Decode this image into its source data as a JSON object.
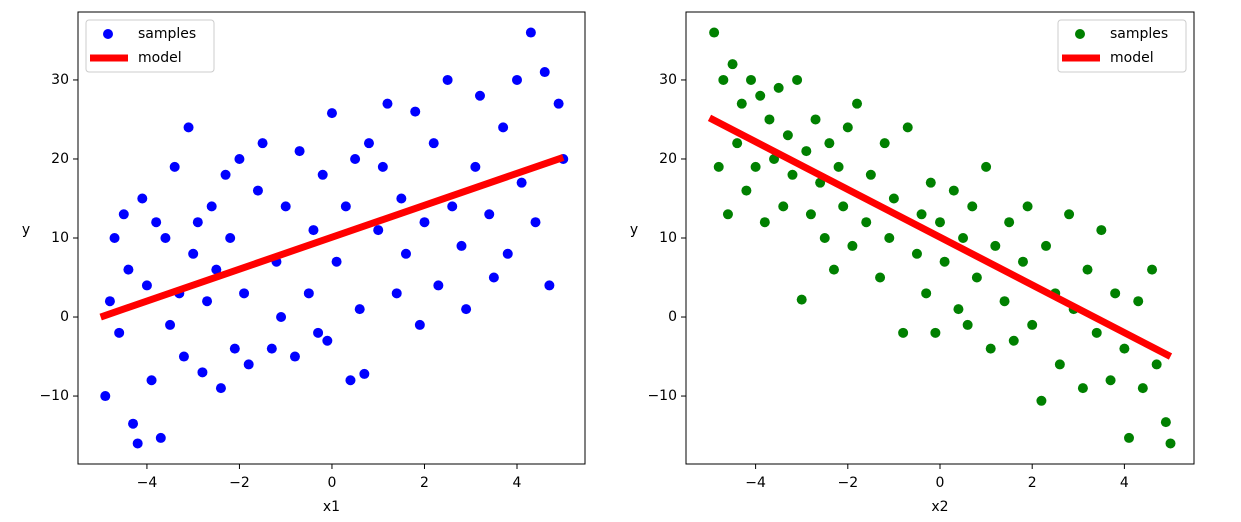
{
  "chart_data": [
    {
      "type": "scatter",
      "xlabel": "x1",
      "ylabel": "y",
      "legend": "upper left",
      "xlim": [
        -5.49,
        5.47
      ],
      "ylim": [
        -18.6,
        38.6
      ],
      "xticks": [
        {
          "value": -4,
          "label": "−4"
        },
        {
          "value": -2,
          "label": "−2"
        },
        0,
        2,
        4
      ],
      "yticks": [
        {
          "value": -10,
          "label": "−10"
        },
        0,
        10,
        20,
        30
      ],
      "series": [
        {
          "name": "samples",
          "mode": "markers",
          "color": "#0000ff",
          "x": [
            -4.9,
            -4.8,
            -4.7,
            -4.6,
            -4.5,
            -4.4,
            -4.3,
            -4.2,
            -4.1,
            -4.0,
            -3.9,
            -3.8,
            -3.7,
            -3.6,
            -3.5,
            -3.4,
            -3.3,
            -3.2,
            -3.1,
            -3.0,
            -2.9,
            -2.8,
            -2.7,
            -2.6,
            -2.5,
            -2.4,
            -2.3,
            -2.2,
            -2.1,
            -2.0,
            -1.9,
            -1.8,
            -1.6,
            -1.5,
            -1.3,
            -1.2,
            -1.1,
            -1.0,
            -0.8,
            -0.7,
            -0.5,
            -0.4,
            -0.3,
            -0.2,
            -0.1,
            0.0,
            0.1,
            0.3,
            0.4,
            0.5,
            0.6,
            0.7,
            0.8,
            1.0,
            1.1,
            1.2,
            1.4,
            1.5,
            1.6,
            1.8,
            1.9,
            2.0,
            2.2,
            2.3,
            2.5,
            2.6,
            2.8,
            2.9,
            3.1,
            3.2,
            3.4,
            3.5,
            3.7,
            3.8,
            4.0,
            4.1,
            4.3,
            4.4,
            4.6,
            4.7,
            4.9,
            5.0
          ],
          "values": [
            -10,
            2,
            10,
            -2,
            13,
            6,
            -13.5,
            -16,
            15,
            4,
            -8,
            12,
            -15.3,
            10,
            -1,
            19,
            3,
            -5,
            24,
            8,
            12,
            -7,
            2,
            14,
            6,
            -9,
            18,
            10,
            -4,
            20,
            3,
            -6,
            16,
            22,
            -4,
            7,
            0,
            14,
            -5,
            21,
            3,
            11,
            -2,
            18,
            -3,
            25.8,
            7,
            14,
            -8,
            20,
            1,
            -7.2,
            22,
            11,
            19,
            27,
            3,
            15,
            8,
            26,
            -1,
            12,
            22,
            4,
            30,
            14,
            9,
            1,
            19,
            28,
            13,
            5,
            24,
            8,
            30,
            17,
            36,
            12,
            31,
            4,
            27,
            20
          ]
        },
        {
          "name": "model",
          "mode": "line",
          "color": "#ff0000",
          "x": [
            -5,
            5
          ],
          "values": [
            0,
            20.2
          ]
        }
      ]
    },
    {
      "type": "scatter",
      "xlabel": "x2",
      "ylabel": "y",
      "legend": "upper right",
      "xlim": [
        -5.51,
        5.51
      ],
      "ylim": [
        -18.6,
        38.6
      ],
      "xticks": [
        {
          "value": -4,
          "label": "−4"
        },
        {
          "value": -2,
          "label": "−2"
        },
        0,
        2,
        4
      ],
      "yticks": [
        {
          "value": -10,
          "label": "−10"
        },
        0,
        10,
        20,
        30
      ],
      "series": [
        {
          "name": "samples",
          "mode": "markers",
          "color": "#008000",
          "x": [
            -4.9,
            -4.8,
            -4.7,
            -4.6,
            -4.5,
            -4.4,
            -4.3,
            -4.2,
            -4.1,
            -4.0,
            -3.9,
            -3.8,
            -3.7,
            -3.6,
            -3.5,
            -3.4,
            -3.3,
            -3.2,
            -3.1,
            -3.0,
            -2.9,
            -2.8,
            -2.7,
            -2.6,
            -2.5,
            -2.4,
            -2.3,
            -2.2,
            -2.1,
            -2.0,
            -1.9,
            -1.8,
            -1.6,
            -1.5,
            -1.3,
            -1.2,
            -1.1,
            -1.0,
            -0.8,
            -0.7,
            -0.5,
            -0.4,
            -0.3,
            -0.2,
            -0.1,
            0.0,
            0.1,
            0.3,
            0.4,
            0.5,
            0.6,
            0.7,
            0.8,
            1.0,
            1.1,
            1.2,
            1.4,
            1.5,
            1.6,
            1.8,
            1.9,
            2.0,
            2.2,
            2.3,
            2.5,
            2.6,
            2.8,
            2.9,
            3.1,
            3.2,
            3.4,
            3.5,
            3.7,
            3.8,
            4.0,
            4.1,
            4.3,
            4.4,
            4.6,
            4.7,
            4.9,
            5.0
          ],
          "values": [
            36,
            19,
            30,
            13,
            32,
            22,
            27,
            16,
            30,
            19,
            28,
            12,
            25,
            20,
            29,
            14,
            23,
            18,
            30,
            2.2,
            21,
            13,
            25,
            17,
            10,
            22,
            6,
            19,
            14,
            24,
            9,
            27,
            12,
            18,
            5,
            22,
            10,
            15,
            -2,
            24,
            8,
            13,
            3,
            17,
            -2,
            12,
            7,
            16,
            1,
            10,
            -1,
            14,
            5,
            19,
            -4,
            9,
            2,
            12,
            -3,
            7,
            14,
            -1,
            -10.6,
            9,
            3,
            -6,
            13,
            1,
            -9,
            6,
            -2,
            11,
            -8,
            3,
            -4,
            -15.3,
            2,
            -9,
            6,
            -6,
            -13.3,
            -16
          ]
        },
        {
          "name": "model",
          "mode": "line",
          "color": "#ff0000",
          "x": [
            -5,
            5
          ],
          "values": [
            25.2,
            -5
          ]
        }
      ]
    }
  ]
}
